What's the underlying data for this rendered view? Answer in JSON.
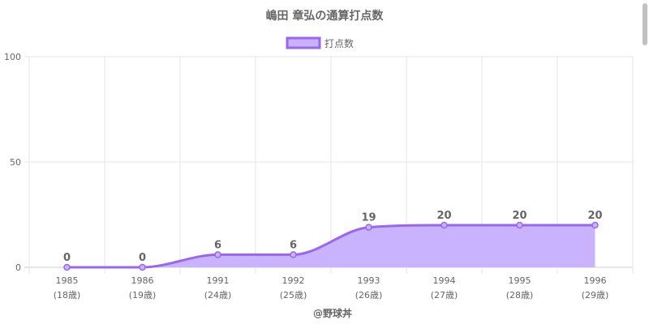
{
  "chart_data": {
    "type": "area",
    "title": "嶋田 章弘の通算打点数",
    "categories": [
      "1985",
      "1986",
      "1991",
      "1992",
      "1993",
      "1994",
      "1995",
      "1996"
    ],
    "age_labels": [
      "(18歳)",
      "(19歳)",
      "(24歳)",
      "(25歳)",
      "(26歳)",
      "(27歳)",
      "(28歳)",
      "(29歳)"
    ],
    "series": [
      {
        "name": "打点数",
        "values": [
          0,
          0,
          6,
          6,
          19,
          20,
          20,
          20
        ]
      }
    ],
    "ylim": [
      0,
      100
    ],
    "yticks": [
      0,
      50,
      100
    ],
    "grid": true,
    "legend": "top",
    "colors": {
      "line": "#9966ee",
      "fill": "#c9b3ff",
      "grid": "#e6e6e6",
      "axis": "#cccccc"
    }
  },
  "credit": "@野球丼"
}
